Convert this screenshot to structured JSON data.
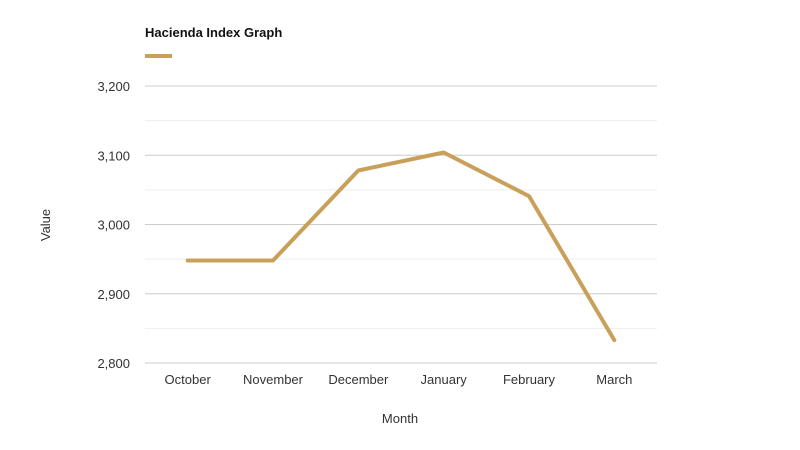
{
  "chart_data": {
    "type": "line",
    "title": "Hacienda Index Graph",
    "xlabel": "Month",
    "ylabel": "Value",
    "categories": [
      "October",
      "November",
      "December",
      "January",
      "February",
      "March"
    ],
    "series": [
      {
        "name": "",
        "values": [
          2948,
          2948,
          3078,
          3104,
          3041,
          2833
        ],
        "color": "#c9a05a"
      }
    ],
    "ylim": [
      2800,
      3200
    ],
    "yticks": [
      2800,
      2900,
      3000,
      3100,
      3200
    ],
    "ytick_labels": [
      "2,800",
      "2,900",
      "3,000",
      "3,100",
      "3,200"
    ],
    "grid": true,
    "legend": "top-left",
    "gridline_color": "#cccccc",
    "minor_gridline_color": "#eeeeee"
  }
}
